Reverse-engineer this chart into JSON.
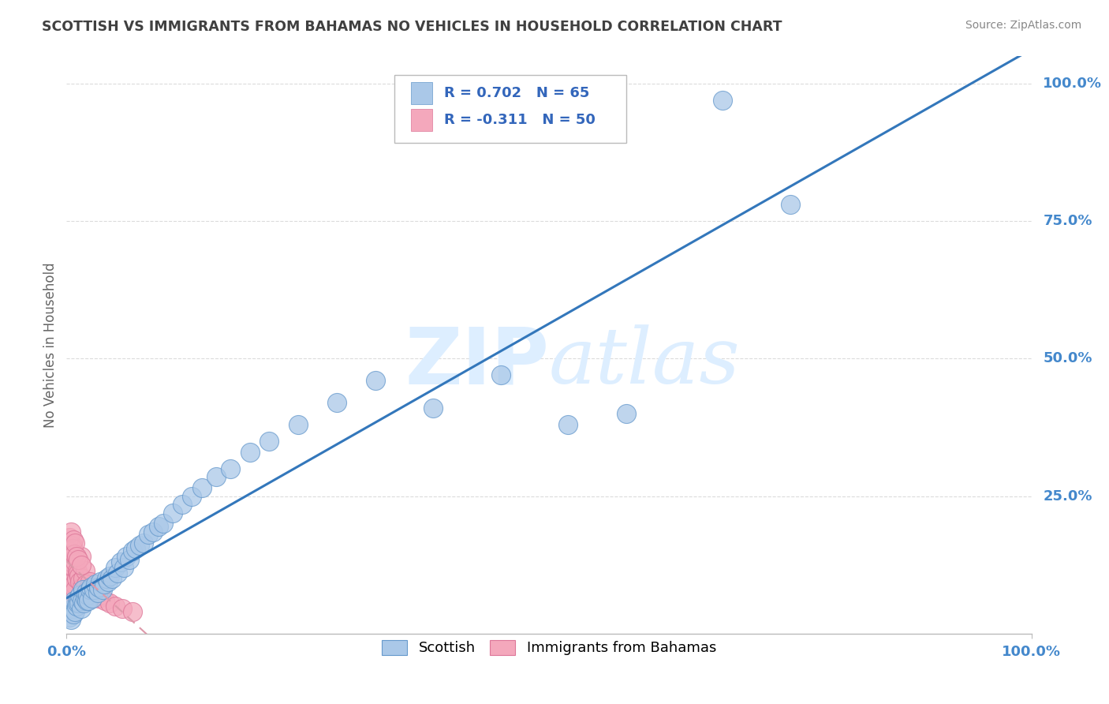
{
  "title": "SCOTTISH VS IMMIGRANTS FROM BAHAMAS NO VEHICLES IN HOUSEHOLD CORRELATION CHART",
  "source": "Source: ZipAtlas.com",
  "ylabel": "No Vehicles in Household",
  "ytick_labels": [
    "100.0%",
    "75.0%",
    "50.0%",
    "25.0%"
  ],
  "ytick_values": [
    1.0,
    0.75,
    0.5,
    0.25
  ],
  "xlim": [
    0,
    1.0
  ],
  "ylim": [
    0,
    1.05
  ],
  "legend_r1": "R = 0.702   N = 65",
  "legend_r2": "R = -0.311   N = 50",
  "scottish_color": "#aac8e8",
  "scottish_edge_color": "#6699cc",
  "bahamas_color": "#f4a8bc",
  "bahamas_edge_color": "#dd7799",
  "trendline_scottish_color": "#3377bb",
  "trendline_bahamas_color": "#dd99aa",
  "grid_color": "#cccccc",
  "background_color": "#ffffff",
  "title_color": "#404040",
  "axis_label_color": "#4488cc",
  "watermark_color": "#ddeeff",
  "legend_text_color": "#3366bb",
  "scottish_x": [
    0.003,
    0.005,
    0.006,
    0.007,
    0.008,
    0.009,
    0.01,
    0.011,
    0.012,
    0.013,
    0.014,
    0.015,
    0.016,
    0.017,
    0.018,
    0.019,
    0.02,
    0.021,
    0.022,
    0.023,
    0.024,
    0.025,
    0.027,
    0.028,
    0.03,
    0.032,
    0.033,
    0.035,
    0.037,
    0.039,
    0.041,
    0.043,
    0.045,
    0.047,
    0.05,
    0.053,
    0.056,
    0.059,
    0.062,
    0.065,
    0.068,
    0.072,
    0.076,
    0.08,
    0.085,
    0.09,
    0.095,
    0.1,
    0.11,
    0.12,
    0.13,
    0.14,
    0.155,
    0.17,
    0.19,
    0.21,
    0.24,
    0.28,
    0.32,
    0.38,
    0.45,
    0.52,
    0.58,
    0.68,
    0.75
  ],
  "scottish_y": [
    0.03,
    0.025,
    0.045,
    0.035,
    0.06,
    0.04,
    0.05,
    0.055,
    0.065,
    0.055,
    0.07,
    0.045,
    0.06,
    0.08,
    0.055,
    0.065,
    0.075,
    0.06,
    0.07,
    0.06,
    0.08,
    0.085,
    0.065,
    0.08,
    0.09,
    0.075,
    0.085,
    0.095,
    0.08,
    0.09,
    0.1,
    0.095,
    0.105,
    0.1,
    0.12,
    0.11,
    0.13,
    0.12,
    0.14,
    0.135,
    0.15,
    0.155,
    0.16,
    0.165,
    0.18,
    0.185,
    0.195,
    0.2,
    0.22,
    0.235,
    0.25,
    0.265,
    0.285,
    0.3,
    0.33,
    0.35,
    0.38,
    0.42,
    0.46,
    0.41,
    0.47,
    0.38,
    0.4,
    0.97,
    0.78
  ],
  "bahamas_x": [
    0.001,
    0.002,
    0.002,
    0.003,
    0.003,
    0.004,
    0.004,
    0.005,
    0.005,
    0.006,
    0.006,
    0.007,
    0.007,
    0.008,
    0.008,
    0.009,
    0.009,
    0.01,
    0.011,
    0.012,
    0.013,
    0.014,
    0.015,
    0.016,
    0.017,
    0.018,
    0.019,
    0.02,
    0.022,
    0.024,
    0.026,
    0.028,
    0.03,
    0.033,
    0.036,
    0.04,
    0.045,
    0.05,
    0.058,
    0.068,
    0.003,
    0.004,
    0.005,
    0.006,
    0.007,
    0.008,
    0.009,
    0.01,
    0.012,
    0.015
  ],
  "bahamas_y": [
    0.08,
    0.1,
    0.12,
    0.09,
    0.15,
    0.07,
    0.11,
    0.085,
    0.13,
    0.095,
    0.16,
    0.075,
    0.12,
    0.09,
    0.145,
    0.08,
    0.13,
    0.1,
    0.115,
    0.11,
    0.105,
    0.095,
    0.14,
    0.085,
    0.1,
    0.075,
    0.115,
    0.09,
    0.08,
    0.095,
    0.085,
    0.075,
    0.08,
    0.065,
    0.07,
    0.06,
    0.055,
    0.05,
    0.045,
    0.04,
    0.175,
    0.16,
    0.185,
    0.155,
    0.17,
    0.145,
    0.165,
    0.14,
    0.135,
    0.125
  ]
}
